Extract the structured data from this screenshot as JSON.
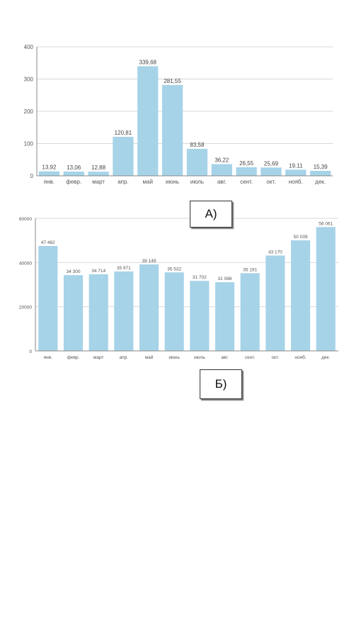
{
  "labels": {
    "chart_a": "А)",
    "chart_b": "Б)"
  },
  "colors": {
    "bar": "#a6d3e8",
    "grid": "#d9d9d9",
    "axis": "#888888"
  },
  "chart_data": [
    {
      "type": "bar",
      "categories": [
        "янв.",
        "февр.",
        "март",
        "апр.",
        "май",
        "июнь",
        "июль",
        "авг.",
        "сент.",
        "окт.",
        "нояб.",
        "дек."
      ],
      "values": [
        13.92,
        13.06,
        12.88,
        120.81,
        339.68,
        281.55,
        83.58,
        36.22,
        26.55,
        25.69,
        19.11,
        15.39
      ],
      "value_labels": [
        "13,92",
        "13,06",
        "12,88",
        "120,81",
        "339,68",
        "281,55",
        "83,58",
        "36,22",
        "26,55",
        "25,69",
        "19,11",
        "15,39"
      ],
      "yticks": [
        "0",
        "100",
        "200",
        "300",
        "400"
      ],
      "ylim": [
        0,
        400
      ],
      "grid": true,
      "title": "",
      "xlabel": "",
      "ylabel": ""
    },
    {
      "type": "bar",
      "categories": [
        "янв.",
        "февр.",
        "март",
        "апр.",
        "май",
        "июнь",
        "июль",
        "авг.",
        "сент.",
        "окт.",
        "нояб.",
        "дек."
      ],
      "values": [
        47482,
        34300,
        34714,
        35971,
        39149,
        35532,
        31702,
        31086,
        35191,
        43170,
        50039,
        56061
      ],
      "value_labels": [
        "47 482",
        "34 300",
        "34 714",
        "35 971",
        "39 149",
        "35 532",
        "31 702",
        "31 086",
        "35 191",
        "43 170",
        "50 039",
        "56 061"
      ],
      "yticks": [
        "0",
        "20000",
        "40000",
        "60000"
      ],
      "ylim": [
        0,
        60000
      ],
      "grid": true,
      "title": "",
      "xlabel": "",
      "ylabel": ""
    }
  ]
}
